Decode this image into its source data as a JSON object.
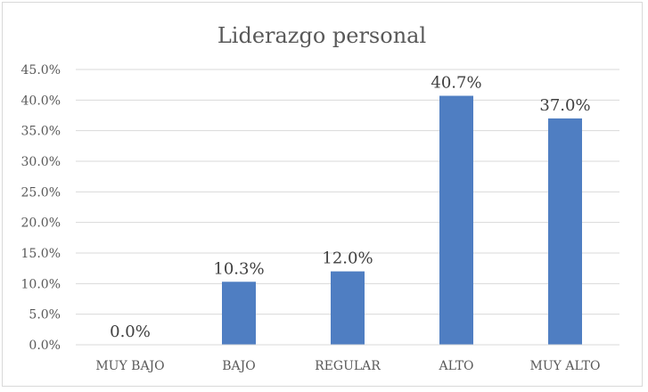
{
  "chart_data": {
    "type": "bar",
    "title": "Liderazgo personal",
    "categories": [
      "MUY BAJO",
      "BAJO",
      "REGULAR",
      "ALTO",
      "MUY ALTO"
    ],
    "values": [
      0.0,
      10.3,
      12.0,
      40.7,
      37.0
    ],
    "value_labels": [
      "0.0%",
      "10.3%",
      "12.0%",
      "40.7%",
      "37.0%"
    ],
    "ylim": [
      0,
      45
    ],
    "yticks": [
      0,
      5,
      10,
      15,
      20,
      25,
      30,
      35,
      40,
      45
    ],
    "ytick_labels": [
      "0.0%",
      "5.0%",
      "10.0%",
      "15.0%",
      "20.0%",
      "25.0%",
      "30.0%",
      "35.0%",
      "40.0%",
      "45.0%"
    ],
    "grid": true,
    "legend": "none",
    "bar_color": "#4f7ec2",
    "grid_color": "#d9d9d9"
  }
}
